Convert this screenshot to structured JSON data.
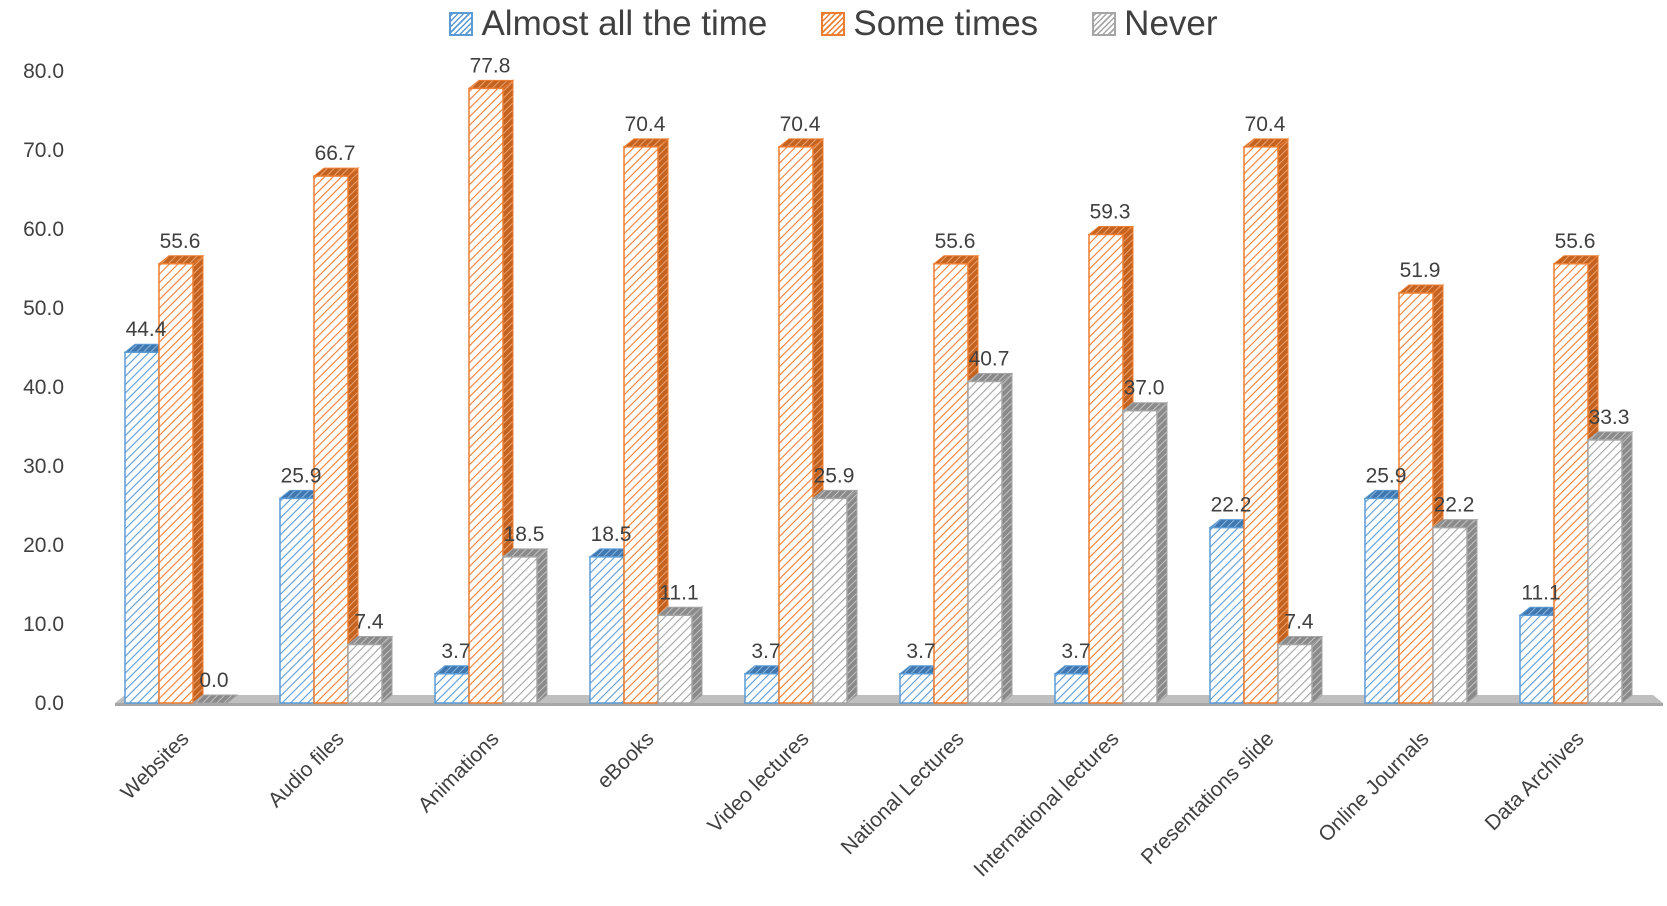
{
  "chart_data": {
    "type": "bar",
    "title": "",
    "xlabel": "",
    "ylabel": "",
    "ylim": [
      0,
      80
    ],
    "yticks": [
      "0.0",
      "10.0",
      "20.0",
      "30.0",
      "40.0",
      "50.0",
      "60.0",
      "70.0",
      "80.0"
    ],
    "ytick_values": [
      0,
      10,
      20,
      30,
      40,
      50,
      60,
      70,
      80
    ],
    "grid": false,
    "legend_position": "top",
    "categories": [
      "Websites",
      "Audio files",
      "Animations",
      "eBooks",
      "Video lectures",
      "National Lectures",
      "International lectures",
      "Presentations slide",
      "Online Journals",
      "Data Archives"
    ],
    "series": [
      {
        "name": "Almost all the time",
        "color": "#5b9bd5",
        "values": [
          44.4,
          25.9,
          3.7,
          18.5,
          3.7,
          3.7,
          3.7,
          22.2,
          25.9,
          11.1
        ],
        "labels": [
          "44.4",
          "25.9",
          "3.7",
          "18.5",
          "3.7",
          "3.7",
          "3.7",
          "22.2",
          "25.9",
          "11.1"
        ]
      },
      {
        "name": "Some times",
        "color": "#ed7d31",
        "values": [
          55.6,
          66.7,
          77.8,
          70.4,
          70.4,
          55.6,
          59.3,
          70.4,
          51.9,
          55.6
        ],
        "labels": [
          "55.6",
          "66.7",
          "77.8",
          "70.4",
          "70.4",
          "55.6",
          "59.3",
          "70.4",
          "51.9",
          "55.6"
        ]
      },
      {
        "name": "Never",
        "color": "#a5a5a5",
        "values": [
          0.0,
          7.4,
          18.5,
          11.1,
          25.9,
          40.7,
          37.0,
          7.4,
          22.2,
          33.3
        ],
        "labels": [
          "0.0",
          "7.4",
          "18.5",
          "11.1",
          "25.9",
          "40.7",
          "37.0",
          "7.4",
          "22.2",
          "33.3"
        ]
      }
    ]
  }
}
